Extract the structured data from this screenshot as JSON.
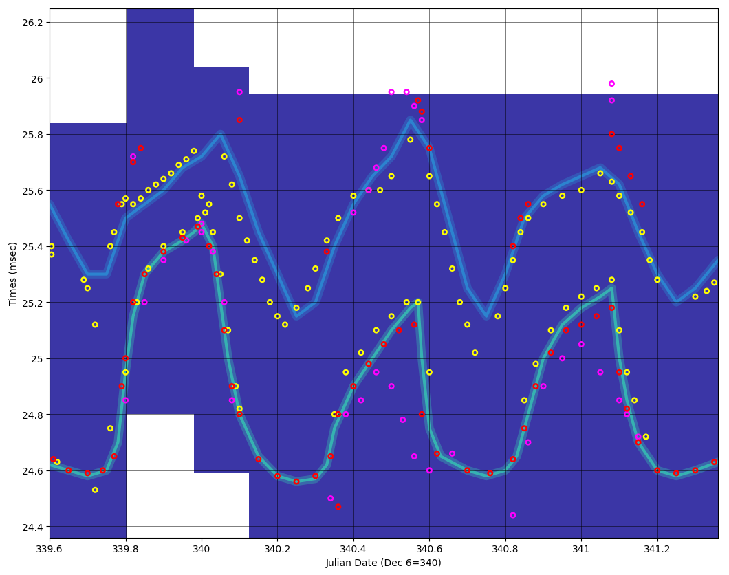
{
  "chart_data": {
    "type": "scatter",
    "x_label": "Julian Date (Dec 6=340)",
    "y_label": "Times (msec)",
    "xlim": [
      339.6,
      341.36
    ],
    "ylim": [
      24.36,
      26.25
    ],
    "xticks": [
      339.6,
      339.8,
      340,
      340.2,
      340.4,
      340.6,
      340.8,
      341,
      341.2
    ],
    "yticks": [
      24.4,
      24.6,
      24.8,
      25,
      25.2,
      25.4,
      25.6,
      25.8,
      26,
      26.2
    ],
    "grid": true,
    "coverage": {
      "color": "#3b36a6",
      "windows": [
        {
          "x": [
            339.6,
            339.805
          ],
          "y": [
            24.36,
            25.84
          ]
        },
        {
          "x": [
            339.805,
            339.98
          ],
          "y": [
            24.8,
            26.25
          ]
        },
        {
          "x": [
            339.98,
            340.125
          ],
          "y": [
            24.59,
            26.04
          ]
        },
        {
          "x": [
            340.125,
            341.36
          ],
          "y": [
            24.36,
            25.945
          ]
        }
      ]
    },
    "series": [
      {
        "type": "line",
        "color": "#36c6b4",
        "x": [
          339.6,
          339.65,
          339.7,
          339.75,
          339.78,
          339.8,
          339.82,
          339.85,
          339.9,
          339.95,
          339.98,
          340.0,
          340.03,
          340.05,
          340.07,
          340.1,
          340.15,
          340.2,
          340.25,
          340.3,
          340.33,
          340.35,
          340.4,
          340.45,
          340.5,
          340.55,
          340.57,
          340.58,
          340.6,
          340.63,
          340.7,
          340.75,
          340.8,
          340.83,
          340.86,
          340.9,
          340.95,
          341.0,
          341.05,
          341.08,
          341.1,
          341.12,
          341.15,
          341.2,
          341.25,
          341.3,
          341.36
        ],
        "values": [
          24.62,
          24.6,
          24.58,
          24.6,
          24.7,
          24.95,
          25.15,
          25.3,
          25.38,
          25.42,
          25.45,
          25.48,
          25.4,
          25.2,
          25.0,
          24.8,
          24.65,
          24.58,
          24.56,
          24.57,
          24.62,
          24.75,
          24.9,
          25.0,
          25.1,
          25.18,
          25.2,
          25.0,
          24.75,
          24.65,
          24.6,
          24.58,
          24.6,
          24.65,
          24.8,
          25.0,
          25.12,
          25.18,
          25.22,
          25.25,
          25.0,
          24.85,
          24.7,
          24.6,
          24.58,
          24.6,
          24.63
        ]
      },
      {
        "type": "line",
        "color": "#2a8fd6",
        "x": [
          339.6,
          339.65,
          339.7,
          339.75,
          339.8,
          339.85,
          339.9,
          339.95,
          340.0,
          340.05,
          340.1,
          340.15,
          340.2,
          340.25,
          340.3,
          340.35,
          340.4,
          340.45,
          340.5,
          340.55,
          340.6,
          340.65,
          340.7,
          340.75,
          340.8,
          340.85,
          340.9,
          340.95,
          341.0,
          341.05,
          341.1,
          341.15,
          341.2,
          341.25,
          341.3,
          341.36
        ],
        "values": [
          25.55,
          25.42,
          25.3,
          25.3,
          25.5,
          25.55,
          25.6,
          25.68,
          25.72,
          25.8,
          25.65,
          25.45,
          25.3,
          25.15,
          25.2,
          25.4,
          25.55,
          25.65,
          25.72,
          25.85,
          25.75,
          25.5,
          25.25,
          25.15,
          25.3,
          25.5,
          25.58,
          25.62,
          25.65,
          25.68,
          25.62,
          25.45,
          25.3,
          25.2,
          25.25,
          25.35
        ]
      },
      {
        "type": "scatter",
        "marker": "o",
        "color": "#ffff00",
        "x": [
          339.605,
          339.605,
          339.69,
          339.7,
          339.72,
          339.76,
          339.77,
          339.79,
          339.8,
          339.82,
          339.84,
          339.86,
          339.88,
          339.9,
          339.92,
          339.94,
          339.96,
          339.98,
          340.0,
          340.02,
          340.06,
          340.08,
          340.1,
          340.12,
          340.14,
          340.16,
          340.18,
          340.2,
          340.22,
          340.25,
          340.28,
          340.3,
          340.33,
          340.36,
          340.4,
          340.44,
          340.47,
          340.5,
          340.55,
          340.6,
          340.62,
          340.64,
          340.66,
          340.68,
          340.7,
          340.72,
          340.78,
          340.8,
          340.82,
          340.84,
          340.86,
          340.9,
          340.95,
          341.0,
          341.05,
          341.08,
          341.1,
          341.13,
          341.16,
          341.18,
          341.2,
          341.3,
          341.33,
          341.35,
          339.62,
          339.72,
          339.76,
          339.8,
          339.83,
          339.86,
          339.9,
          339.95,
          339.99,
          340.01,
          340.03,
          340.05,
          340.07,
          340.09,
          340.1,
          340.35,
          340.38,
          340.42,
          340.46,
          340.5,
          340.54,
          340.57,
          340.6,
          340.85,
          340.88,
          340.92,
          340.96,
          341.0,
          341.04,
          341.08,
          341.1,
          341.12,
          341.14,
          341.17
        ],
        "values": [
          25.4,
          25.37,
          25.28,
          25.25,
          25.12,
          25.4,
          25.45,
          25.55,
          25.57,
          25.55,
          25.57,
          25.6,
          25.62,
          25.64,
          25.66,
          25.69,
          25.71,
          25.74,
          25.58,
          25.55,
          25.72,
          25.62,
          25.5,
          25.42,
          25.35,
          25.28,
          25.2,
          25.15,
          25.12,
          25.18,
          25.25,
          25.32,
          25.42,
          25.5,
          25.58,
          25.6,
          25.6,
          25.65,
          25.78,
          25.65,
          25.55,
          25.45,
          25.32,
          25.2,
          25.12,
          25.02,
          25.15,
          25.25,
          25.35,
          25.45,
          25.5,
          25.55,
          25.58,
          25.6,
          25.66,
          25.63,
          25.58,
          25.52,
          25.45,
          25.35,
          25.28,
          25.22,
          25.24,
          25.27,
          24.63,
          24.53,
          24.75,
          24.95,
          25.2,
          25.32,
          25.4,
          25.45,
          25.5,
          25.52,
          25.45,
          25.3,
          25.1,
          24.9,
          24.82,
          24.8,
          24.95,
          25.02,
          25.1,
          25.15,
          25.2,
          25.2,
          24.95,
          24.85,
          24.98,
          25.1,
          25.18,
          25.22,
          25.25,
          25.28,
          25.1,
          24.95,
          24.85,
          24.72
        ]
      },
      {
        "type": "scatter",
        "marker": "o",
        "color": "#ff00ff",
        "x": [
          339.8,
          339.85,
          339.9,
          339.96,
          340.0,
          340.03,
          340.06,
          340.08,
          340.34,
          340.38,
          340.42,
          340.46,
          340.5,
          340.53,
          340.56,
          340.6,
          340.66,
          340.82,
          340.86,
          340.9,
          340.95,
          341.0,
          341.05,
          341.1,
          341.15,
          341.12,
          340.4,
          340.44,
          340.46,
          340.48,
          340.5,
          340.54,
          340.56,
          340.58,
          340.1,
          339.82,
          341.08,
          341.08,
          340.0
        ],
        "values": [
          24.85,
          25.2,
          25.35,
          25.42,
          25.48,
          25.38,
          25.2,
          24.85,
          24.5,
          24.8,
          24.85,
          24.95,
          24.9,
          24.78,
          24.65,
          24.6,
          24.66,
          24.44,
          24.7,
          24.9,
          25.0,
          25.05,
          24.95,
          24.85,
          24.72,
          24.8,
          25.52,
          25.6,
          25.68,
          25.75,
          25.95,
          25.95,
          25.9,
          25.85,
          25.95,
          25.72,
          25.98,
          25.92,
          25.45
        ]
      },
      {
        "type": "scatter",
        "marker": "o",
        "color": "#ff0000",
        "x": [
          339.61,
          339.65,
          339.7,
          339.74,
          339.77,
          339.79,
          339.8,
          339.82,
          339.85,
          339.9,
          339.95,
          339.99,
          340.02,
          340.04,
          340.06,
          340.08,
          340.1,
          340.15,
          340.2,
          340.25,
          340.3,
          340.34,
          340.36,
          340.4,
          340.44,
          340.48,
          340.52,
          340.56,
          340.58,
          340.62,
          340.7,
          340.76,
          340.82,
          340.85,
          340.88,
          340.92,
          340.96,
          341.0,
          341.04,
          341.08,
          341.1,
          341.12,
          341.15,
          341.2,
          341.25,
          341.3,
          341.35,
          339.78,
          339.82,
          339.84,
          340.1,
          340.33,
          340.57,
          340.58,
          340.6,
          340.82,
          340.84,
          340.86,
          341.08,
          341.1,
          341.13,
          341.16,
          340.36
        ],
        "values": [
          24.64,
          24.6,
          24.59,
          24.6,
          24.65,
          24.9,
          25.0,
          25.2,
          25.3,
          25.38,
          25.43,
          25.47,
          25.4,
          25.3,
          25.1,
          24.9,
          24.8,
          24.64,
          24.58,
          24.56,
          24.58,
          24.65,
          24.8,
          24.9,
          24.98,
          25.05,
          25.1,
          25.12,
          24.8,
          24.66,
          24.6,
          24.59,
          24.64,
          24.75,
          24.9,
          25.02,
          25.1,
          25.12,
          25.15,
          25.18,
          24.95,
          24.82,
          24.7,
          24.6,
          24.59,
          24.6,
          24.63,
          25.55,
          25.7,
          25.75,
          25.85,
          25.38,
          25.92,
          25.88,
          25.75,
          25.4,
          25.5,
          25.55,
          25.8,
          25.75,
          25.65,
          25.55,
          24.47
        ]
      }
    ]
  }
}
